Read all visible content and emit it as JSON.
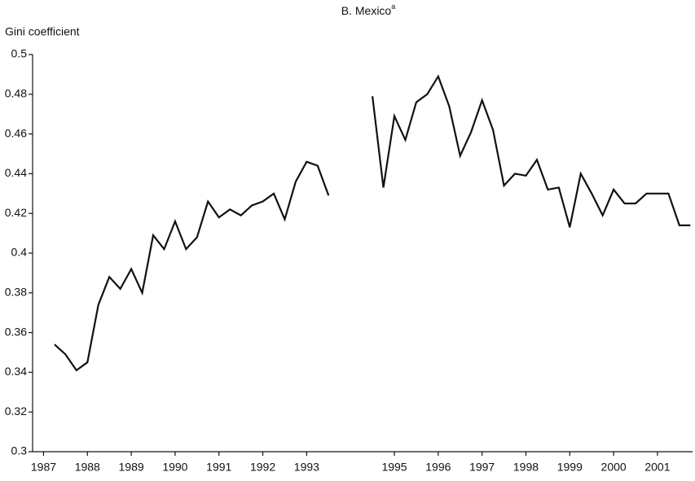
{
  "chart_data": {
    "type": "line",
    "title": "B. Mexico",
    "title_superscript": "a",
    "y_label": "Gini coefficient",
    "x": [
      1987.25,
      1987.5,
      1987.75,
      1988,
      1988.25,
      1988.5,
      1988.75,
      1989,
      1989.25,
      1989.5,
      1989.75,
      1990,
      1990.25,
      1990.5,
      1990.75,
      1991,
      1991.25,
      1991.5,
      1991.75,
      1992,
      1992.25,
      1992.5,
      1992.75,
      1993,
      1993.25,
      1993.5,
      1993.75,
      1994,
      1994.25,
      1994.5,
      1994.75,
      1995,
      1995.25,
      1995.5,
      1995.75,
      1996,
      1996.25,
      1996.5,
      1996.75,
      1997,
      1997.25,
      1997.5,
      1997.75,
      1998,
      1998.25,
      1998.5,
      1998.75,
      1999,
      1999.25,
      1999.5,
      1999.75,
      2000,
      2000.25,
      2000.5,
      2000.75,
      2001,
      2001.25,
      2001.5,
      2001.75
    ],
    "series": [
      {
        "color": "#111111",
        "values": [
          0.354,
          0.349,
          0.341,
          0.345,
          0.374,
          0.388,
          0.382,
          0.392,
          0.38,
          0.409,
          0.402,
          0.416,
          0.402,
          0.408,
          0.426,
          0.418,
          0.422,
          0.419,
          0.424,
          0.426,
          0.43,
          0.417,
          0.436,
          0.446,
          0.444,
          0.429,
          null,
          null,
          null,
          0.479,
          0.433,
          0.469,
          0.457,
          0.476,
          0.48,
          0.489,
          0.474,
          0.449,
          0.461,
          0.477,
          0.462,
          0.434,
          0.44,
          0.439,
          0.447,
          0.432,
          0.433,
          0.413,
          0.44,
          0.43,
          0.419,
          0.432,
          0.425,
          0.425,
          0.43,
          0.43,
          0.43,
          0.414,
          0.414
        ]
      }
    ],
    "xlim": [
      1986.75,
      2001.8
    ],
    "xticks": [
      1987,
      1988,
      1989,
      1990,
      1991,
      1992,
      1993,
      1995,
      1996,
      1997,
      1998,
      1999,
      2000,
      2001
    ],
    "ylim": [
      0.3,
      0.5
    ],
    "yticks": [
      0.3,
      0.32,
      0.34,
      0.36,
      0.38,
      0.4,
      0.42,
      0.44,
      0.46,
      0.48,
      0.5
    ],
    "grid": false
  }
}
